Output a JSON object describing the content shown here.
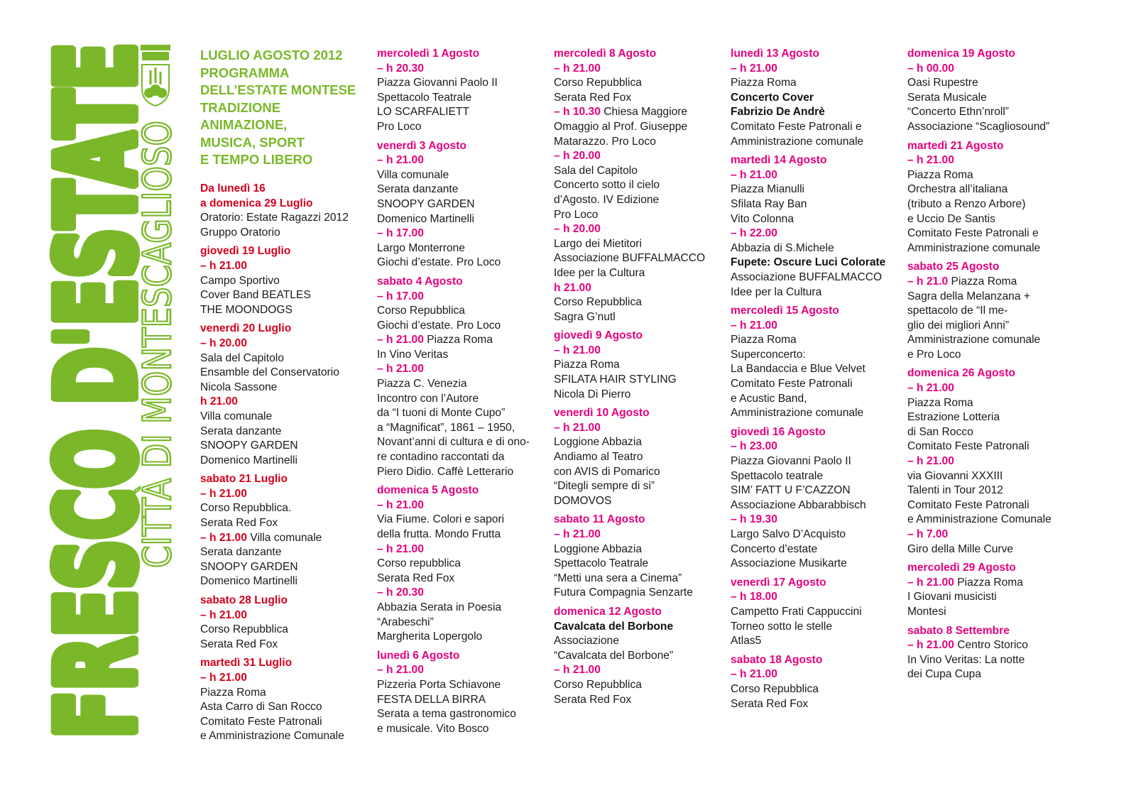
{
  "logo": {
    "title": "FRESCO D'ESTATE",
    "city": "CITTÀ DI MONTESCAGLIOSO"
  },
  "colors": {
    "green": "#7ab829",
    "july": "#d6001c",
    "august": "#e5007e"
  },
  "intro": [
    "LUGLIO AGOSTO 2012",
    "PROGRAMMA",
    "DELL’ESTATE MONTESE",
    "TRADIZIONE",
    "ANIMAZIONE,",
    "MUSICA, SPORT",
    "E TEMPO LIBERO"
  ],
  "columns": [
    [
      {
        "date": [
          "Da lunedì 16",
          "a domenica 29 Luglio"
        ],
        "lines": [
          {
            "t": "Oratorio: Estate Ragazzi 2012"
          },
          {
            "t": "Gruppo Oratorio"
          }
        ]
      },
      {
        "date": [
          "giovedì 19 Luglio"
        ],
        "lines": [
          {
            "h": "– h 21.00"
          },
          {
            "t": "Campo Sportivo"
          },
          {
            "t": "Cover Band BEATLES"
          },
          {
            "t": "THE MOONDOGS"
          }
        ]
      },
      {
        "date": [
          "venerdì 20 Luglio"
        ],
        "lines": [
          {
            "h": "– h 20.00"
          },
          {
            "t": "Sala del Capitolo"
          },
          {
            "t": "Ensamble del Conservatorio"
          },
          {
            "t": "Nicola Sassone"
          },
          {
            "h": "h 21.00"
          },
          {
            "t": "Villa comunale"
          },
          {
            "t": "Serata danzante"
          },
          {
            "t": "SNOOPY GARDEN"
          },
          {
            "t": "Domenico Martinelli"
          }
        ]
      },
      {
        "date": [
          "sabato 21 Luglio"
        ],
        "lines": [
          {
            "h": "– h 21.00"
          },
          {
            "t": "Corso Repubblica."
          },
          {
            "t": "Serata Red Fox"
          },
          {
            "h": "– h 21.00",
            "t": " Villa comunale"
          },
          {
            "t": "Serata danzante"
          },
          {
            "t": "SNOOPY GARDEN"
          },
          {
            "t": "Domenico Martinelli"
          }
        ]
      },
      {
        "date": [
          "sabato 28 Luglio"
        ],
        "lines": [
          {
            "h": "– h 21.00"
          },
          {
            "t": "Corso Repubblica"
          },
          {
            "t": "Serata Red Fox"
          }
        ]
      },
      {
        "date": [
          "martedì 31 Luglio"
        ],
        "lines": [
          {
            "h": "– h 21.00"
          },
          {
            "t": "Piazza Roma"
          },
          {
            "t": "Asta Carro di San Rocco"
          },
          {
            "t": "Comitato Feste Patronali"
          },
          {
            "t": "e Amministrazione Comunale"
          }
        ]
      }
    ],
    [
      {
        "date": [
          "mercoledì 1 Agosto"
        ],
        "lines": [
          {
            "h": "– h 20.30"
          },
          {
            "t": "Piazza Giovanni Paolo II"
          },
          {
            "t": "Spettacolo Teatrale"
          },
          {
            "t": "LO SCARFALIETT"
          },
          {
            "t": "Pro Loco"
          }
        ]
      },
      {
        "date": [
          "venerdì 3 Agosto"
        ],
        "lines": [
          {
            "h": "– h 21.00"
          },
          {
            "t": "Villa comunale"
          },
          {
            "t": "Serata danzante"
          },
          {
            "t": "SNOOPY GARDEN"
          },
          {
            "t": "Domenico Martinelli"
          },
          {
            "h": "– h 17.00"
          },
          {
            "t": "Largo Monterrone"
          },
          {
            "t": "Giochi d’estate. Pro Loco"
          }
        ]
      },
      {
        "date": [
          "sabato 4 Agosto"
        ],
        "lines": [
          {
            "h": "– h 17.00"
          },
          {
            "t": "Corso Repubblica"
          },
          {
            "t": "Giochi d’estate. Pro Loco"
          },
          {
            "h": "– h 21.00",
            "t": " Piazza Roma"
          },
          {
            "t": "In Vino Veritas"
          },
          {
            "h": "– h 21.00"
          },
          {
            "t": "Piazza C. Venezia"
          },
          {
            "t": "Incontro con l’Autore"
          },
          {
            "t": "da “I tuoni di Monte Cupo”"
          },
          {
            "t": "a “Magnificat”, 1861 – 1950,"
          },
          {
            "t": "Novant’anni di cultura e di ono-"
          },
          {
            "t": "re contadino raccontati da"
          },
          {
            "t": "Piero Didio. Caffè Letterario"
          }
        ]
      },
      {
        "date": [
          "domenica 5 Agosto"
        ],
        "lines": [
          {
            "h": "– h 21.00"
          },
          {
            "t": "Via Fiume. Colori e sapori"
          },
          {
            "t": "della frutta. Mondo Frutta"
          },
          {
            "h": "– h 21.00"
          },
          {
            "t": "Corso repubblica"
          },
          {
            "t": "Serata Red Fox"
          },
          {
            "h": "– h 20.30"
          },
          {
            "t": "Abbazia Serata in Poesia"
          },
          {
            "t": "“Arabeschi”"
          },
          {
            "t": "Margherita Lopergolo"
          }
        ]
      },
      {
        "date": [
          "lunedì 6 Agosto"
        ],
        "lines": [
          {
            "h": "– h 21.00"
          },
          {
            "t": "Pizzeria Porta Schiavone"
          },
          {
            "t": "FESTA DELLA BIRRA"
          },
          {
            "t": "Serata a tema gastronomico"
          },
          {
            "t": "e musicale. Vito Bosco"
          }
        ]
      }
    ],
    [
      {
        "date": [
          "mercoledì 8 Agosto"
        ],
        "lines": [
          {
            "h": "– h 21.00"
          },
          {
            "t": "Corso Repubblica"
          },
          {
            "t": "Serata Red Fox"
          },
          {
            "h": "– h 10.30",
            "t": " Chiesa Maggiore"
          },
          {
            "t": "Omaggio al Prof. Giuseppe"
          },
          {
            "t": "Matarazzo. Pro Loco"
          },
          {
            "h": "– h 20.00"
          },
          {
            "t": "Sala del Capitolo"
          },
          {
            "t": "Concerto sotto il cielo"
          },
          {
            "t": "d’Agosto. IV Edizione"
          },
          {
            "t": "Pro Loco"
          },
          {
            "h": "– h 20.00"
          },
          {
            "t": "Largo dei Mietitori"
          },
          {
            "t": "Associazione BUFFALMACCO"
          },
          {
            "t": "Idee per la Cultura"
          },
          {
            "h": "h 21.00"
          },
          {
            "t": "Corso Repubblica"
          },
          {
            "t": "Sagra G’nutl"
          }
        ]
      },
      {
        "date": [
          "giovedì 9 Agosto"
        ],
        "lines": [
          {
            "h": "– h 21.00"
          },
          {
            "t": "Piazza Roma"
          },
          {
            "t": "SFILATA HAIR STYLING"
          },
          {
            "t": "Nicola Di Pierro"
          }
        ]
      },
      {
        "date": [
          "venerdì 10 Agosto"
        ],
        "lines": [
          {
            "h": "– h 21.00"
          },
          {
            "t": "Loggione Abbazia"
          },
          {
            "t": "Andiamo al Teatro"
          },
          {
            "t": "con AVIS di Pomarico"
          },
          {
            "t": "“Ditegli sempre di si”"
          },
          {
            "t": "DOMOVOS"
          }
        ]
      },
      {
        "date": [
          "sabato 11 Agosto"
        ],
        "lines": [
          {
            "h": "– h 21.00"
          },
          {
            "t": "Loggione Abbazia"
          },
          {
            "t": "Spettacolo Teatrale"
          },
          {
            "t": "“Metti una sera a Cinema”"
          },
          {
            "t": "Futura Compagnia Senzarte"
          }
        ]
      },
      {
        "date": [
          "domenica 12 Agosto"
        ],
        "lines": [
          {
            "b": "Cavalcata del Borbone"
          },
          {
            "t": "Associazione"
          },
          {
            "t": "“Cavalcata del Borbone”"
          },
          {
            "h": "– h 21.00"
          },
          {
            "t": "Corso Repubblica"
          },
          {
            "t": "Serata Red Fox"
          }
        ]
      }
    ],
    [
      {
        "date": [
          "lunedì 13 Agosto"
        ],
        "lines": [
          {
            "h": "– h 21.00"
          },
          {
            "t": "Piazza Roma"
          },
          {
            "b": "Concerto Cover"
          },
          {
            "b": "Fabrizio De Andrè"
          },
          {
            "t": "Comitato Feste Patronali e"
          },
          {
            "t": "Amministrazione comunale"
          }
        ]
      },
      {
        "date": [
          "martedì 14 Agosto"
        ],
        "lines": [
          {
            "h": "– h 21.00"
          },
          {
            "t": "Piazza Mianulli"
          },
          {
            "t": "Sfilata Ray Ban"
          },
          {
            "t": "Vito Colonna"
          },
          {
            "h": "– h 22.00"
          },
          {
            "t": "Abbazia di S.Michele"
          },
          {
            "b": "Fupete: Oscure Luci Colorate"
          },
          {
            "t": "Associazione BUFFALMACCO"
          },
          {
            "t": "Idee per la Cultura"
          }
        ]
      },
      {
        "date": [
          "mercoledì 15 Agosto"
        ],
        "lines": [
          {
            "h": "– h 21.00"
          },
          {
            "t": "Piazza Roma"
          },
          {
            "t": "Superconcerto:"
          },
          {
            "t": "La Bandaccia e Blue Velvet"
          },
          {
            "t": "Comitato Feste Patronali"
          },
          {
            "t": "e Acustic Band,"
          },
          {
            "t": "Amministrazione comunale"
          }
        ]
      },
      {
        "date": [
          "giovedì 16 Agosto"
        ],
        "lines": [
          {
            "h": "– h 23.00"
          },
          {
            "t": "Piazza Giovanni Paolo II"
          },
          {
            "t": "Spettacolo teatrale"
          },
          {
            "t": "SIM’ FATT U F’CAZZON"
          },
          {
            "t": "Associazione Abbarabbisch"
          },
          {
            "h": "– h 19.30"
          },
          {
            "t": "Largo Salvo D’Acquisto"
          },
          {
            "t": "Concerto d’estate"
          },
          {
            "t": "Associazione Musikarte"
          }
        ]
      },
      {
        "date": [
          "venerdì 17 Agosto"
        ],
        "lines": [
          {
            "h": "– h 18.00"
          },
          {
            "t": "Campetto Frati Cappuccini"
          },
          {
            "t": "Torneo sotto le stelle"
          },
          {
            "t": "Atlas5"
          }
        ]
      },
      {
        "date": [
          "sabato 18 Agosto"
        ],
        "lines": [
          {
            "h": "– h 21.00"
          },
          {
            "t": "Corso Repubblica"
          },
          {
            "t": "Serata Red Fox"
          }
        ]
      }
    ],
    [
      {
        "date": [
          "domenica 19 Agosto"
        ],
        "lines": [
          {
            "h": "– h 00.00"
          },
          {
            "t": "Oasi Rupestre"
          },
          {
            "t": "Serata Musicale"
          },
          {
            "t": "“Concerto Ethn’nroll”"
          },
          {
            "t": "Associazione “Scagliosound”"
          }
        ]
      },
      {
        "date": [
          "martedì 21 Agosto"
        ],
        "lines": [
          {
            "h": "– h 21.00"
          },
          {
            "t": "Piazza Roma"
          },
          {
            "t": "Orchestra all’italiana"
          },
          {
            "t": "(tributo a Renzo Arbore)"
          },
          {
            "t": "e Uccio De Santis"
          },
          {
            "t": "Comitato Feste Patronali e"
          },
          {
            "t": "Amministrazione comunale"
          }
        ]
      },
      {
        "date": [
          "sabato 25 Agosto"
        ],
        "lines": [
          {
            "h": "– h 21.0",
            "t": " Piazza Roma"
          },
          {
            "t": "Sagra della Melanzana +"
          },
          {
            "t": "spettacolo de “Il me-"
          },
          {
            "t": "glio dei migliori Anni”"
          },
          {
            "t": "Amministrazione comunale"
          },
          {
            "t": "e Pro Loco"
          }
        ]
      },
      {
        "date": [
          "domenica 26 Agosto"
        ],
        "lines": [
          {
            "h": "– h 21.00"
          },
          {
            "t": "Piazza Roma"
          },
          {
            "t": "Estrazione Lotteria"
          },
          {
            "t": "di San Rocco"
          },
          {
            "t": "Comitato Feste Patronali"
          },
          {
            "h": "– h 21.00"
          },
          {
            "t": "via Giovanni XXXIII"
          },
          {
            "t": "Talenti in Tour 2012"
          },
          {
            "t": "Comitato Feste Patronali"
          },
          {
            "t": "e Amministrazione Comunale"
          },
          {
            "h": "– h 7.00"
          },
          {
            "t": "Giro della Mille Curve"
          }
        ]
      },
      {
        "date": [
          "mercoledì 29 Agosto"
        ],
        "lines": [
          {
            "h": "– h 21.00",
            "t": " Piazza Roma"
          },
          {
            "t": "I Giovani musicisti"
          },
          {
            "t": "Montesi"
          }
        ]
      },
      {
        "date": [
          "sabato 8 Settembre"
        ],
        "lines": [
          {
            "h": "– h 21.00",
            "t": " Centro Storico"
          },
          {
            "t": "In Vino Veritas: La notte"
          },
          {
            "t": "dei Cupa Cupa"
          }
        ]
      }
    ]
  ]
}
